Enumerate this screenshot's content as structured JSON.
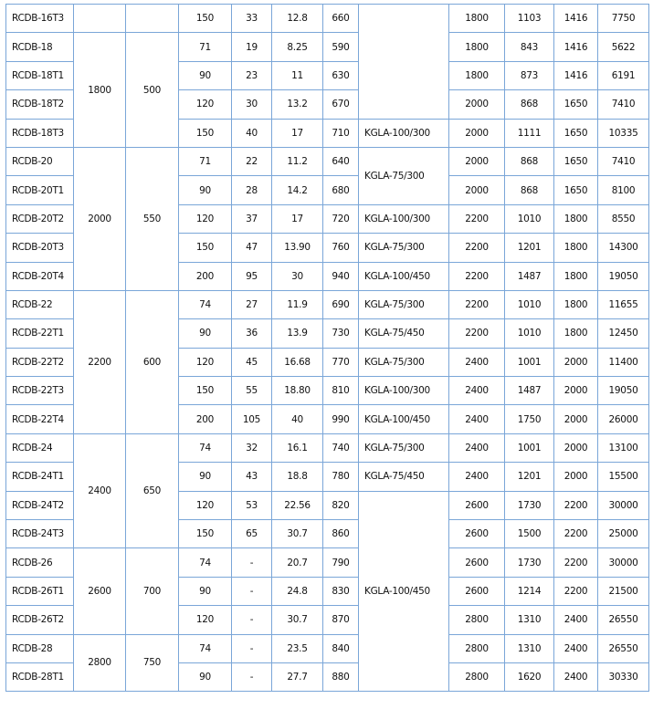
{
  "rows": [
    {
      "model": "RCDB-16T3",
      "c3": "150",
      "c4": "33",
      "c5": "12.8",
      "c6": "660",
      "c8": "1800",
      "c9": "1103",
      "c10": "1416",
      "c11": "7750"
    },
    {
      "model": "RCDB-18",
      "c3": "71",
      "c4": "19",
      "c5": "8.25",
      "c6": "590",
      "c8": "1800",
      "c9": "843",
      "c10": "1416",
      "c11": "5622"
    },
    {
      "model": "RCDB-18T1",
      "c3": "90",
      "c4": "23",
      "c5": "11",
      "c6": "630",
      "c8": "1800",
      "c9": "873",
      "c10": "1416",
      "c11": "6191"
    },
    {
      "model": "RCDB-18T2",
      "c3": "120",
      "c4": "30",
      "c5": "13.2",
      "c6": "670",
      "c8": "2000",
      "c9": "868",
      "c10": "1650",
      "c11": "7410"
    },
    {
      "model": "RCDB-18T3",
      "c3": "150",
      "c4": "40",
      "c5": "17",
      "c6": "710",
      "c8": "2000",
      "c9": "1111",
      "c10": "1650",
      "c11": "10335"
    },
    {
      "model": "RCDB-20",
      "c3": "71",
      "c4": "22",
      "c5": "11.2",
      "c6": "640",
      "c8": "2000",
      "c9": "868",
      "c10": "1650",
      "c11": "7410"
    },
    {
      "model": "RCDB-20T1",
      "c3": "90",
      "c4": "28",
      "c5": "14.2",
      "c6": "680",
      "c8": "2000",
      "c9": "868",
      "c10": "1650",
      "c11": "8100"
    },
    {
      "model": "RCDB-20T2",
      "c3": "120",
      "c4": "37",
      "c5": "17",
      "c6": "720",
      "c8": "2200",
      "c9": "1010",
      "c10": "1800",
      "c11": "8550"
    },
    {
      "model": "RCDB-20T3",
      "c3": "150",
      "c4": "47",
      "c5": "13.90",
      "c6": "760",
      "c8": "2200",
      "c9": "1201",
      "c10": "1800",
      "c11": "14300"
    },
    {
      "model": "RCDB-20T4",
      "c3": "200",
      "c4": "95",
      "c5": "30",
      "c6": "940",
      "c8": "2200",
      "c9": "1487",
      "c10": "1800",
      "c11": "19050"
    },
    {
      "model": "RCDB-22",
      "c3": "74",
      "c4": "27",
      "c5": "11.9",
      "c6": "690",
      "c8": "2200",
      "c9": "1010",
      "c10": "1800",
      "c11": "11655"
    },
    {
      "model": "RCDB-22T1",
      "c3": "90",
      "c4": "36",
      "c5": "13.9",
      "c6": "730",
      "c8": "2200",
      "c9": "1010",
      "c10": "1800",
      "c11": "12450"
    },
    {
      "model": "RCDB-22T2",
      "c3": "120",
      "c4": "45",
      "c5": "16.68",
      "c6": "770",
      "c8": "2400",
      "c9": "1001",
      "c10": "2000",
      "c11": "11400"
    },
    {
      "model": "RCDB-22T3",
      "c3": "150",
      "c4": "55",
      "c5": "18.80",
      "c6": "810",
      "c8": "2400",
      "c9": "1487",
      "c10": "2000",
      "c11": "19050"
    },
    {
      "model": "RCDB-22T4",
      "c3": "200",
      "c4": "105",
      "c5": "40",
      "c6": "990",
      "c8": "2400",
      "c9": "1750",
      "c10": "2000",
      "c11": "26000"
    },
    {
      "model": "RCDB-24",
      "c3": "74",
      "c4": "32",
      "c5": "16.1",
      "c6": "740",
      "c8": "2400",
      "c9": "1001",
      "c10": "2000",
      "c11": "13100"
    },
    {
      "model": "RCDB-24T1",
      "c3": "90",
      "c4": "43",
      "c5": "18.8",
      "c6": "780",
      "c8": "2400",
      "c9": "1201",
      "c10": "2000",
      "c11": "15500"
    },
    {
      "model": "RCDB-24T2",
      "c3": "120",
      "c4": "53",
      "c5": "22.56",
      "c6": "820",
      "c8": "2600",
      "c9": "1730",
      "c10": "2200",
      "c11": "30000"
    },
    {
      "model": "RCDB-24T3",
      "c3": "150",
      "c4": "65",
      "c5": "30.7",
      "c6": "860",
      "c8": "2600",
      "c9": "1500",
      "c10": "2200",
      "c11": "25000"
    },
    {
      "model": "RCDB-26",
      "c3": "74",
      "c4": "-",
      "c5": "20.7",
      "c6": "790",
      "c8": "2600",
      "c9": "1730",
      "c10": "2200",
      "c11": "30000"
    },
    {
      "model": "RCDB-26T1",
      "c3": "90",
      "c4": "-",
      "c5": "24.8",
      "c6": "830",
      "c8": "2600",
      "c9": "1214",
      "c10": "2200",
      "c11": "21500"
    },
    {
      "model": "RCDB-26T2",
      "c3": "120",
      "c4": "-",
      "c5": "30.7",
      "c6": "870",
      "c8": "2800",
      "c9": "1310",
      "c10": "2400",
      "c11": "26550"
    },
    {
      "model": "RCDB-28",
      "c3": "74",
      "c4": "-",
      "c5": "23.5",
      "c6": "840",
      "c8": "2800",
      "c9": "1310",
      "c10": "2400",
      "c11": "26550"
    },
    {
      "model": "RCDB-28T1",
      "c3": "90",
      "c4": "-",
      "c5": "27.7",
      "c6": "880",
      "c8": "2800",
      "c9": "1620",
      "c10": "2400",
      "c11": "30330"
    }
  ],
  "groups": [
    {
      "span": 1,
      "a": "",
      "b": ""
    },
    {
      "span": 4,
      "a": "1800",
      "b": "500"
    },
    {
      "span": 5,
      "a": "2000",
      "b": "550"
    },
    {
      "span": 5,
      "a": "2200",
      "b": "600"
    },
    {
      "span": 4,
      "a": "2400",
      "b": "650"
    },
    {
      "span": 3,
      "a": "2600",
      "b": "700"
    },
    {
      "span": 2,
      "a": "2800",
      "b": "750"
    }
  ],
  "kgla": [
    {
      "span": 4,
      "text": ""
    },
    {
      "span": 1,
      "text": "KGLA-100/300"
    },
    {
      "span": 2,
      "text": "KGLA-75/300"
    },
    {
      "span": 1,
      "text": "KGLA-100/300"
    },
    {
      "span": 1,
      "text": "KGLA-75/300"
    },
    {
      "span": 1,
      "text": "KGLA-100/450"
    },
    {
      "span": 1,
      "text": "KGLA-75/300"
    },
    {
      "span": 1,
      "text": "KGLA-75/450"
    },
    {
      "span": 1,
      "text": "KGLA-75/300"
    },
    {
      "span": 1,
      "text": "KGLA-100/300"
    },
    {
      "span": 1,
      "text": "KGLA-100/450"
    },
    {
      "span": 1,
      "text": "KGLA-75/300"
    },
    {
      "span": 1,
      "text": "KGLA-75/450"
    },
    {
      "span": 7,
      "text": "KGLA-100/450"
    }
  ],
  "border_color": "#7aa6d8"
}
